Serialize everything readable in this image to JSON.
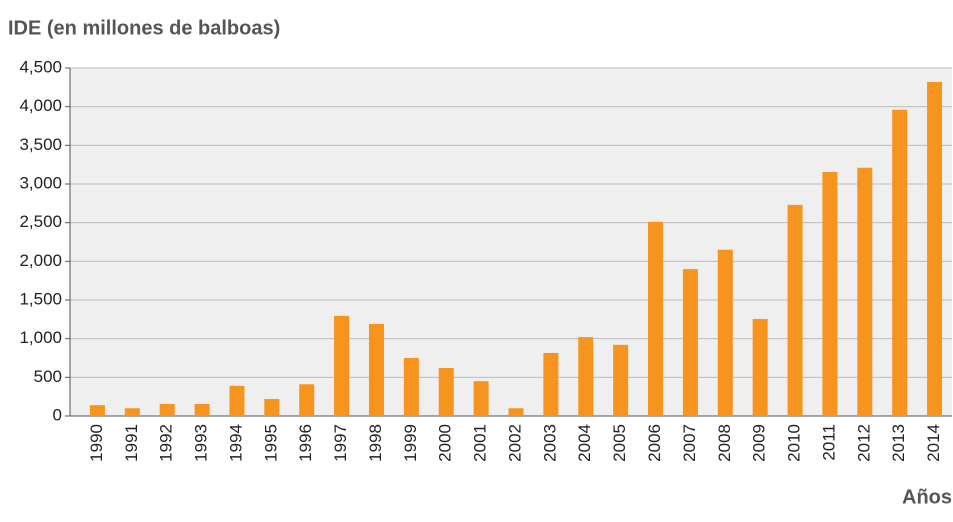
{
  "chart_data": {
    "type": "bar",
    "title": "IDE (en millones de balboas)",
    "x_label": "Años",
    "categories": [
      "1990",
      "1991",
      "1992",
      "1993",
      "1994",
      "1995",
      "1996",
      "1997",
      "1998",
      "1999",
      "2000",
      "2001",
      "2002",
      "2003",
      "2004",
      "2005",
      "2006",
      "2007",
      "2008",
      "2009",
      "2010",
      "2011",
      "2012",
      "2013",
      "2014"
    ],
    "values": [
      140,
      100,
      155,
      155,
      390,
      220,
      410,
      1295,
      1190,
      750,
      620,
      450,
      100,
      815,
      1020,
      920,
      2510,
      1900,
      2150,
      1255,
      2730,
      3155,
      3210,
      3960,
      4320
    ],
    "color": "#f7941d",
    "ylim": [
      0,
      4500
    ],
    "yticks": [
      0,
      500,
      {
        "value": 1000,
        "label": "1,000"
      },
      {
        "value": 1500,
        "label": "1,500"
      },
      {
        "value": 2000,
        "label": "2,000"
      },
      {
        "value": 2500,
        "label": "2,500"
      },
      {
        "value": 3000,
        "label": "3,000"
      },
      {
        "value": 3500,
        "label": "3,500"
      },
      {
        "value": 4000,
        "label": "4,000"
      },
      {
        "value": 4500,
        "label": "4,500"
      }
    ],
    "grid": true
  }
}
